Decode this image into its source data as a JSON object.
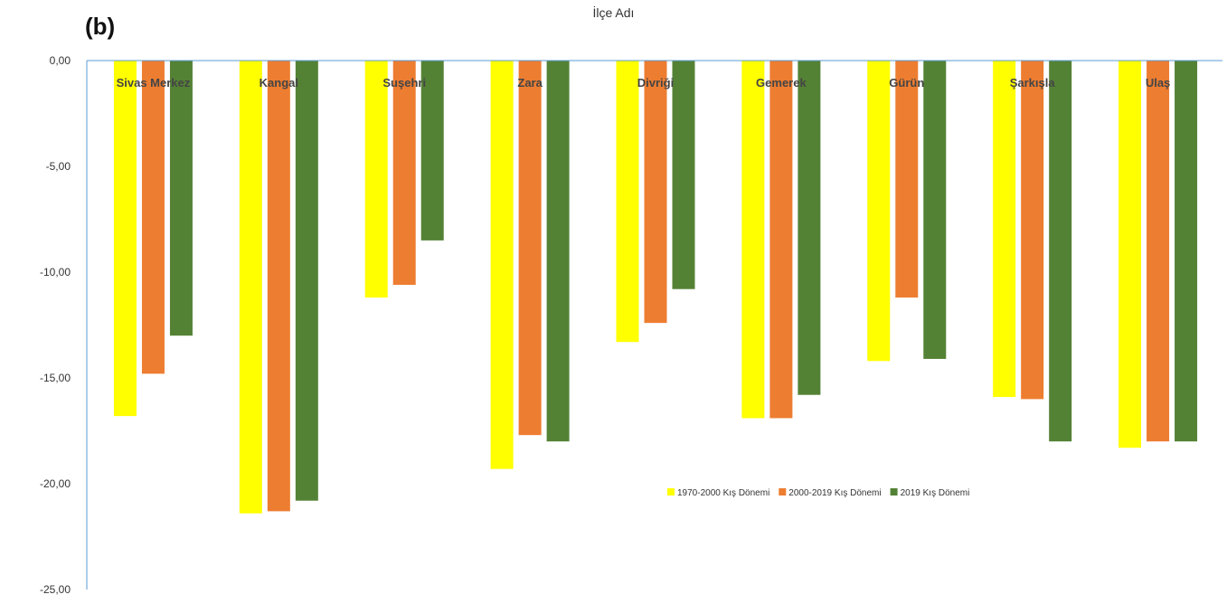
{
  "panel_label": "(b)",
  "colors": {
    "series": [
      "#ffff00",
      "#ed7d31",
      "#548235"
    ],
    "axis": "#5b9bd5",
    "text": "#444444"
  },
  "chart_data": {
    "type": "bar",
    "title": "İlçe Adı",
    "xlabel": "",
    "ylabel": "",
    "ylim": [
      -25,
      0
    ],
    "yticks": [
      0,
      -5,
      -10,
      -15,
      -20,
      -25
    ],
    "ytick_labels": [
      "0,00",
      "-5,00",
      "-10,00",
      "-15,00",
      "-20,00",
      "-25,00"
    ],
    "categories": [
      "Sivas Merkez",
      "Kangal",
      "Suşehri",
      "Zara",
      "Divriği",
      "Gemerek",
      "Gürün",
      "Şarkışla",
      "Ulaş"
    ],
    "series": [
      {
        "name": "1970-2000 Kış Dönemi",
        "values": [
          -16.8,
          -21.4,
          -11.2,
          -19.3,
          -13.3,
          -16.9,
          -14.2,
          -15.9,
          -18.3
        ]
      },
      {
        "name": "2000-2019 Kış Dönemi",
        "values": [
          -14.8,
          -21.3,
          -10.6,
          -17.7,
          -12.4,
          -16.9,
          -11.2,
          -16.0,
          -18.0
        ]
      },
      {
        "name": "2019 Kış Dönemi",
        "values": [
          -13.0,
          -20.8,
          -8.5,
          -18.0,
          -10.8,
          -15.8,
          -14.1,
          -18.0,
          -18.0
        ]
      }
    ],
    "grid": false,
    "legend_position": "center-right"
  }
}
